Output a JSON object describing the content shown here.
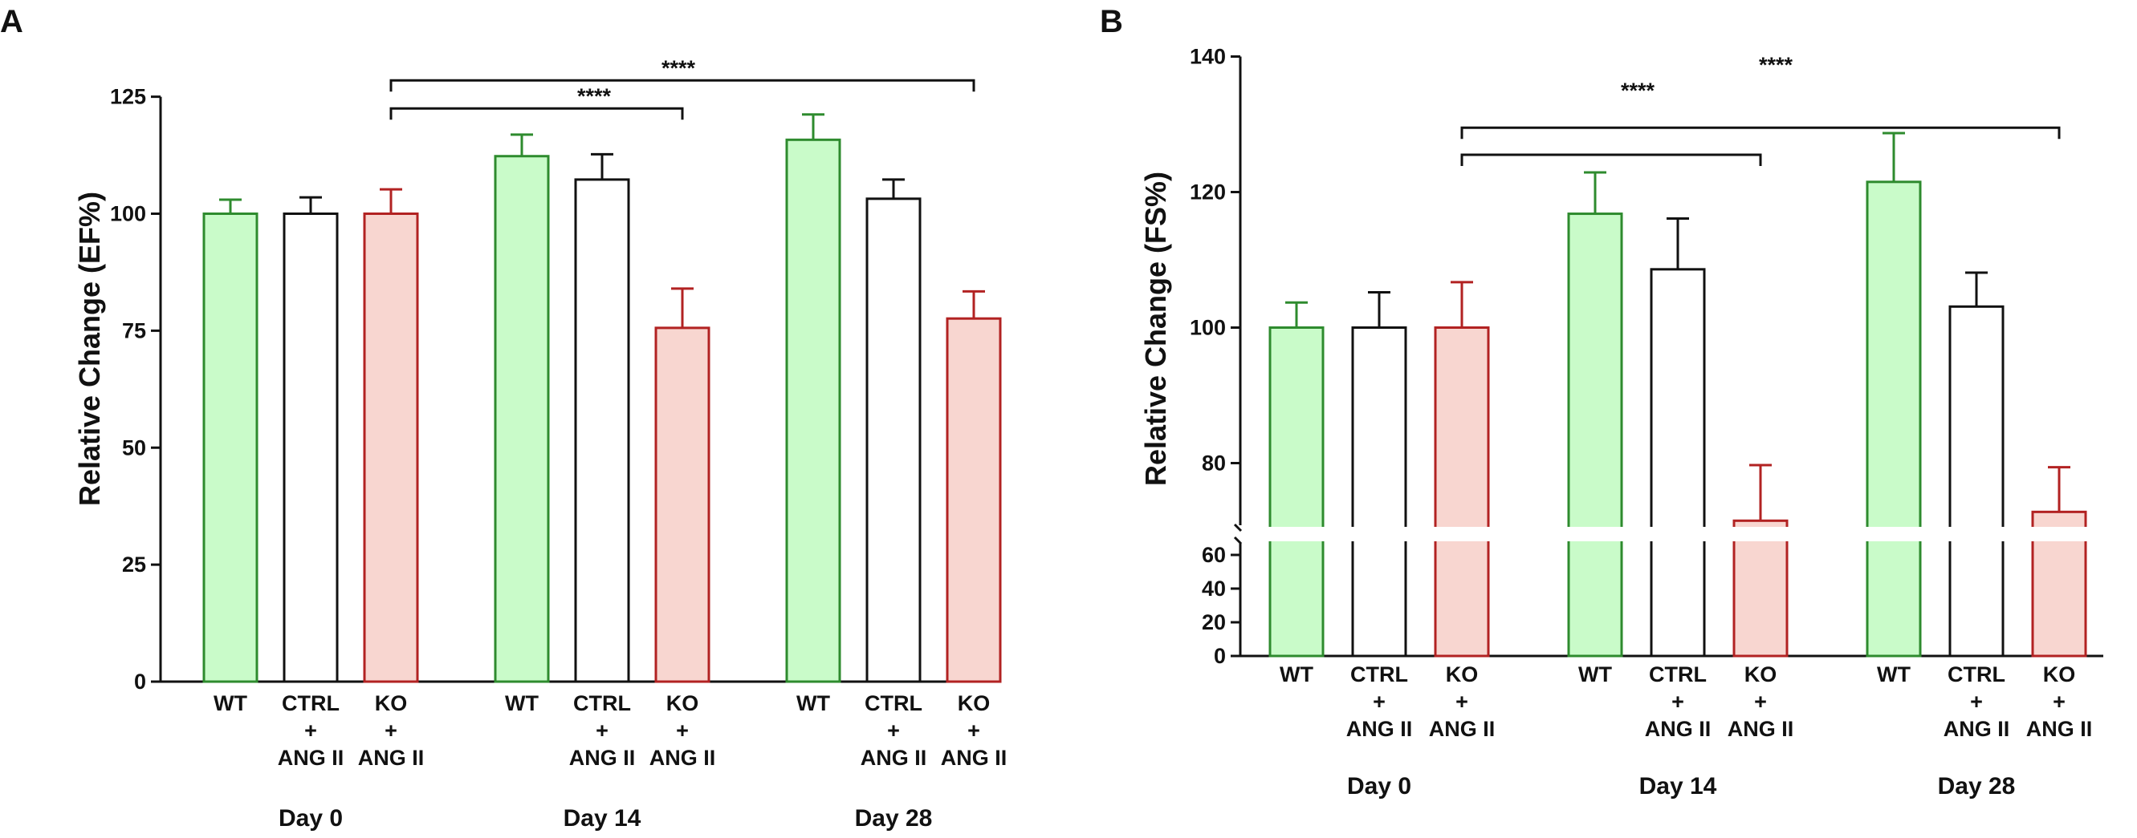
{
  "chart_data": [
    {
      "panel_label": "A",
      "type": "bar",
      "ylabel": "Relative Change (EF%)",
      "ylim": [
        0,
        125
      ],
      "yticks": [
        0,
        25,
        50,
        75,
        100,
        125
      ],
      "groups": [
        {
          "label": "Day 0",
          "bars": [
            {
              "cat": [
                "WT"
              ],
              "value": 100,
              "err": 3,
              "color": "green"
            },
            {
              "cat": [
                "CTRL",
                "+",
                "ANG II"
              ],
              "value": 100,
              "err": 3.5,
              "color": "black"
            },
            {
              "cat": [
                "KO",
                "+",
                "ANG II"
              ],
              "value": 100,
              "err": 5.2,
              "color": "red"
            }
          ]
        },
        {
          "label": "Day 14",
          "bars": [
            {
              "cat": [
                "WT"
              ],
              "value": 112.3,
              "err": 4.6,
              "color": "green"
            },
            {
              "cat": [
                "CTRL",
                "+",
                "ANG II"
              ],
              "value": 107.3,
              "err": 5.4,
              "color": "black"
            },
            {
              "cat": [
                "KO",
                "+",
                "ANG II"
              ],
              "value": 75.6,
              "err": 8.4,
              "color": "red"
            }
          ]
        },
        {
          "label": "Day 28",
          "bars": [
            {
              "cat": [
                "WT"
              ],
              "value": 115.8,
              "err": 5.4,
              "color": "green"
            },
            {
              "cat": [
                "CTRL",
                "+",
                "ANG II"
              ],
              "value": 103.2,
              "err": 4.1,
              "color": "black"
            },
            {
              "cat": [
                "KO",
                "+",
                "ANG II"
              ],
              "value": 77.6,
              "err": 5.8,
              "color": "red"
            }
          ]
        }
      ],
      "significance": [
        {
          "label": "****",
          "from": [
            0,
            2
          ],
          "to": [
            1,
            2
          ],
          "y": 122.5
        },
        {
          "label": "****",
          "from": [
            0,
            2
          ],
          "to": [
            2,
            2
          ],
          "y": 128.5
        }
      ]
    },
    {
      "panel_label": "B",
      "type": "bar",
      "ylabel": "Relative Change (FS%)",
      "axis_break": true,
      "ylim_lower": [
        0,
        70
      ],
      "yticks_lower": [
        0,
        20,
        40,
        60
      ],
      "ylim_upper": [
        70,
        140
      ],
      "yticks_upper": [
        80,
        100,
        120,
        140
      ],
      "groups": [
        {
          "label": "Day 0",
          "bars": [
            {
              "cat": [
                "WT"
              ],
              "value": 100,
              "err": 3.7,
              "color": "green"
            },
            {
              "cat": [
                "CTRL",
                "+",
                "ANG II"
              ],
              "value": 100,
              "err": 5.2,
              "color": "black"
            },
            {
              "cat": [
                "KO",
                "+",
                "ANG II"
              ],
              "value": 100,
              "err": 6.7,
              "color": "red"
            }
          ]
        },
        {
          "label": "Day 14",
          "bars": [
            {
              "cat": [
                "WT"
              ],
              "value": 116.8,
              "err": 6.1,
              "color": "green"
            },
            {
              "cat": [
                "CTRL",
                "+",
                "ANG II"
              ],
              "value": 108.6,
              "err": 7.5,
              "color": "black"
            },
            {
              "cat": [
                "KO",
                "+",
                "ANG II"
              ],
              "value": 71.5,
              "err": 8.2,
              "color": "red"
            }
          ]
        },
        {
          "label": "Day 28",
          "bars": [
            {
              "cat": [
                "WT"
              ],
              "value": 121.5,
              "err": 7.2,
              "color": "green"
            },
            {
              "cat": [
                "CTRL",
                "+",
                "ANG II"
              ],
              "value": 103.1,
              "err": 5,
              "color": "black"
            },
            {
              "cat": [
                "KO",
                "+",
                "ANG II"
              ],
              "value": 72.8,
              "err": 6.6,
              "color": "red"
            }
          ]
        }
      ],
      "significance": [
        {
          "label": "****",
          "from": [
            0,
            2
          ],
          "to": [
            1,
            2
          ],
          "y": 125.5
        },
        {
          "label": "****",
          "from": [
            0,
            2
          ],
          "to": [
            2,
            2
          ],
          "y": 129.5
        }
      ]
    }
  ],
  "colors": {
    "green_stroke": "#2e8b2e",
    "green_fill": "#c9fbc9",
    "black_stroke": "#111111",
    "black_fill": "#ffffff",
    "red_stroke": "#b22222",
    "red_fill": "#f8d6d0",
    "axis": "#111111",
    "bracket": "#111111"
  }
}
